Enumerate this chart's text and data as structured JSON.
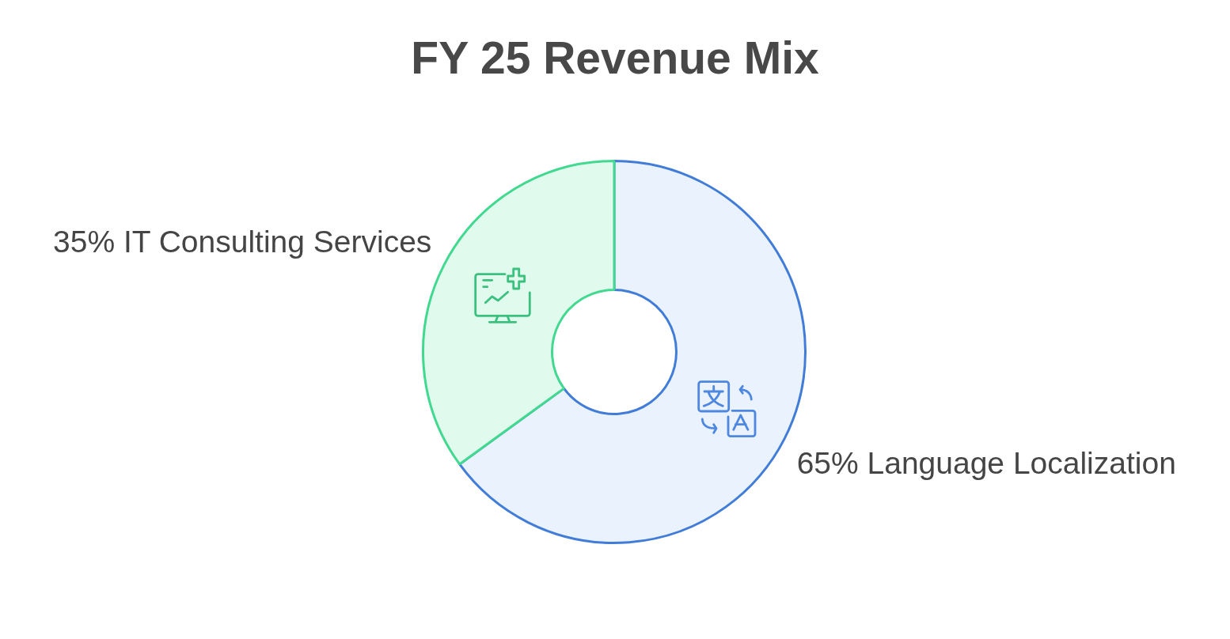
{
  "chart_data": {
    "type": "donut",
    "title": "FY 25 Revenue Mix",
    "categories": [
      "Language Localization",
      "IT Consulting Services"
    ],
    "values": [
      65,
      35
    ],
    "colors": [
      "#eaf2fe",
      "#e1faee"
    ],
    "value_labels": [
      "65%",
      "35%"
    ]
  }
}
